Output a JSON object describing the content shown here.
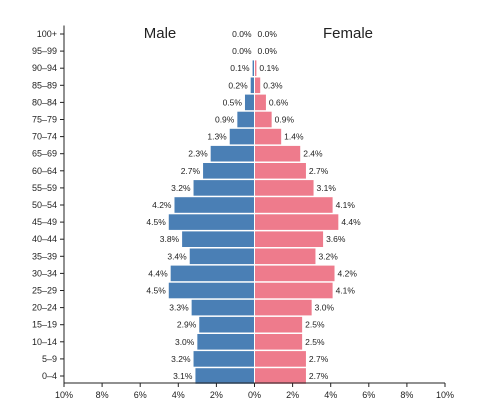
{
  "chart_data": {
    "type": "bar",
    "orientation": "horizontal",
    "subtype": "population-pyramid",
    "categories": [
      "100+",
      "95-99",
      "90-94",
      "85-89",
      "80-84",
      "75-79",
      "70-74",
      "65-69",
      "60-64",
      "55-59",
      "50-54",
      "45-49",
      "40-44",
      "35-39",
      "30-34",
      "25-29",
      "20-24",
      "15-19",
      "10-14",
      "5-9",
      "0-4"
    ],
    "series": [
      {
        "name": "Male",
        "color": "#4a7fb5",
        "values": [
          0.0,
          0.0,
          0.1,
          0.2,
          0.5,
          0.9,
          1.3,
          2.3,
          2.7,
          3.2,
          4.2,
          4.5,
          3.8,
          3.4,
          4.4,
          4.5,
          3.3,
          2.9,
          3.0,
          3.2,
          3.1
        ],
        "labels": [
          "0.0%",
          "0.0%",
          "0.1%",
          "0.2%",
          "0.5%",
          "0.9%",
          "1.3%",
          "2.3%",
          "2.7%",
          "3.2%",
          "4.2%",
          "4.5%",
          "3.8%",
          "3.4%",
          "4.4%",
          "4.5%",
          "3.3%",
          "2.9%",
          "3.0%",
          "3.2%",
          "3.1%"
        ]
      },
      {
        "name": "Female",
        "color": "#ee7b8c",
        "values": [
          0.0,
          0.0,
          0.1,
          0.3,
          0.6,
          0.9,
          1.4,
          2.4,
          2.7,
          3.1,
          4.1,
          4.4,
          3.6,
          3.2,
          4.2,
          4.1,
          3.0,
          2.5,
          2.5,
          2.7,
          2.7
        ],
        "labels": [
          "0.0%",
          "0.0%",
          "0.1%",
          "0.3%",
          "0.6%",
          "0.9%",
          "1.4%",
          "2.4%",
          "2.7%",
          "3.1%",
          "4.1%",
          "4.4%",
          "3.6%",
          "3.2%",
          "4.2%",
          "4.1%",
          "3.0%",
          "2.5%",
          "2.5%",
          "2.7%",
          "2.7%"
        ]
      }
    ],
    "x_ticks": [
      "10%",
      "8%",
      "6%",
      "4%",
      "2%",
      "0%",
      "2%",
      "4%",
      "6%",
      "8%",
      "10%"
    ],
    "xlim": [
      -10,
      10
    ],
    "grid": false,
    "legend": "none"
  }
}
